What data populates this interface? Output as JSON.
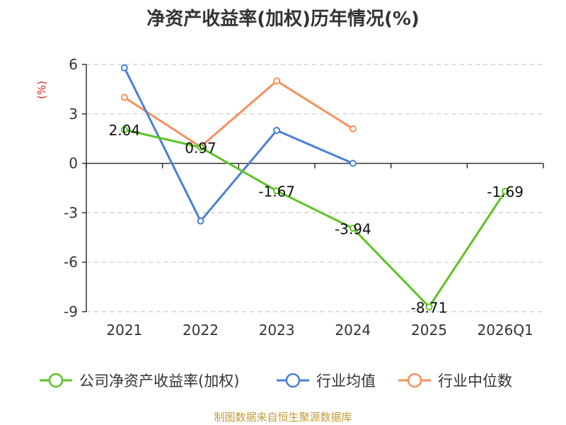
{
  "chart_data": {
    "type": "line",
    "title": "净资产收益率(加权)历年情况(%)",
    "ylabel": "(%)",
    "xlabel": "",
    "categories": [
      "2021",
      "2022",
      "2023",
      "2024",
      "2025",
      "2026Q1"
    ],
    "yticks": [
      6,
      3,
      0,
      -3,
      -6,
      -9
    ],
    "ylim": [
      -9,
      6
    ],
    "grid": true,
    "legend_position": "bottom",
    "series": [
      {
        "name": "公司净资产收益率(加权)",
        "color": "#5cc424",
        "values": [
          2.04,
          0.97,
          -1.67,
          -3.94,
          -8.71,
          -1.69
        ],
        "labels": [
          "2.04",
          "0.97",
          "-1.67",
          "-3.94",
          "-8.71",
          "-1.69"
        ]
      },
      {
        "name": "行业均值",
        "color": "#4a7fd8",
        "values": [
          5.8,
          -3.5,
          2.0,
          0.0,
          null,
          null
        ]
      },
      {
        "name": "行业中位数",
        "color": "#f5905a",
        "values": [
          4.0,
          1.0,
          5.0,
          2.1,
          null,
          null
        ]
      }
    ]
  },
  "source": "制图数据来自恒生聚源数据库"
}
